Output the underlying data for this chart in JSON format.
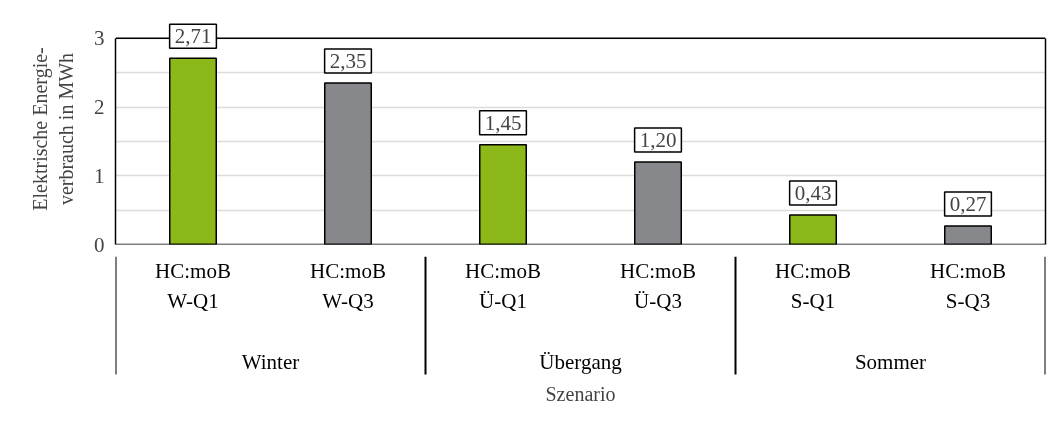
{
  "chart_data": {
    "type": "bar",
    "xlabel": "Szenario",
    "ylabel": "Elektrische Energie-\nverbrauch in MWh",
    "categories": [
      "HC:moB\nW-Q1",
      "HC:moB\nW-Q3",
      "HC:moB\nÜ-Q1",
      "HC:moB\nÜ-Q3",
      "HC:moB\nS-Q1",
      "HC:moB\nS-Q3"
    ],
    "values": [
      2.71,
      2.35,
      1.45,
      1.2,
      0.43,
      0.27
    ],
    "colors": [
      "#8cb81a",
      "#87888c",
      "#8cb81a",
      "#87888c",
      "#8cb81a",
      "#87888c"
    ],
    "value_labels": [
      "2,71",
      "2,35",
      "1,45",
      "1,20",
      "0,43",
      "0,27"
    ],
    "annotations": [
      "Winter",
      "Übergang",
      "Sommer"
    ],
    "ylim": [
      0,
      3
    ],
    "yticks": [
      0,
      {
        "value": 0.5,
        "label": null
      },
      1,
      {
        "value": 1.5,
        "label": null
      },
      2,
      {
        "value": 2.5,
        "label": null
      },
      3
    ],
    "grid": "y"
  }
}
